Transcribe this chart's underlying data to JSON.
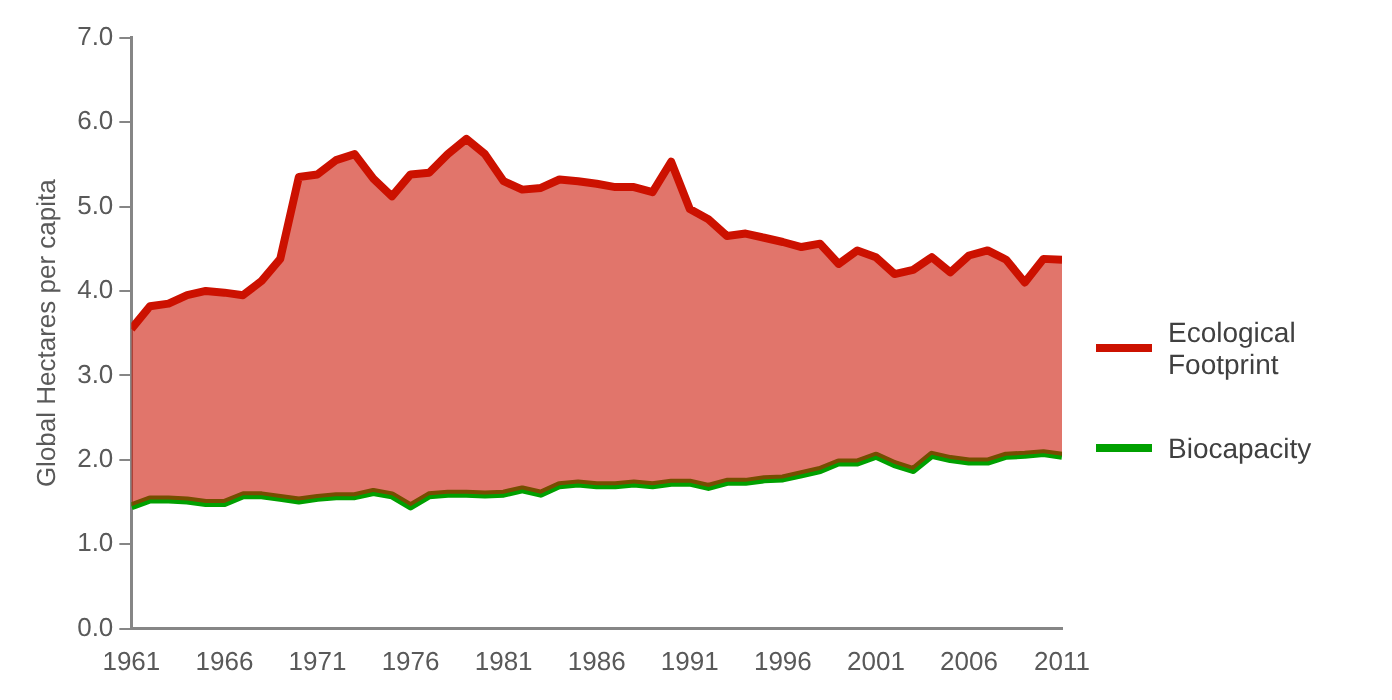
{
  "chart_data": {
    "type": "area",
    "ylabel": "Global Hectares per capita",
    "x": [
      1961,
      1962,
      1963,
      1964,
      1965,
      1966,
      1967,
      1968,
      1969,
      1970,
      1971,
      1972,
      1973,
      1974,
      1975,
      1976,
      1977,
      1978,
      1979,
      1980,
      1981,
      1982,
      1983,
      1984,
      1985,
      1986,
      1987,
      1988,
      1989,
      1990,
      1991,
      1992,
      1993,
      1994,
      1995,
      1996,
      1997,
      1998,
      1999,
      2000,
      2001,
      2002,
      2003,
      2004,
      2005,
      2006,
      2007,
      2008,
      2009,
      2010,
      2011
    ],
    "series": [
      {
        "name": "Ecological Footprint",
        "color": "#cc1100",
        "values": [
          3.55,
          3.82,
          3.85,
          3.95,
          4.0,
          3.98,
          3.95,
          4.12,
          4.38,
          5.35,
          5.38,
          5.55,
          5.62,
          5.33,
          5.12,
          5.38,
          5.4,
          5.62,
          5.8,
          5.62,
          5.3,
          5.2,
          5.22,
          5.32,
          5.3,
          5.27,
          5.23,
          5.23,
          5.17,
          5.53,
          4.97,
          4.85,
          4.65,
          4.68,
          4.63,
          4.58,
          4.52,
          4.56,
          4.32,
          4.48,
          4.4,
          4.2,
          4.25,
          4.4,
          4.22,
          4.42,
          4.48,
          4.37,
          4.1,
          4.38,
          4.37
        ]
      },
      {
        "name": "Biocapacity",
        "type": "line",
        "color": "#00a000",
        "values": [
          1.45,
          1.53,
          1.53,
          1.52,
          1.49,
          1.49,
          1.58,
          1.58,
          1.55,
          1.52,
          1.55,
          1.57,
          1.57,
          1.62,
          1.58,
          1.45,
          1.58,
          1.6,
          1.6,
          1.59,
          1.6,
          1.65,
          1.6,
          1.7,
          1.72,
          1.7,
          1.7,
          1.72,
          1.7,
          1.73,
          1.73,
          1.68,
          1.74,
          1.74,
          1.77,
          1.78,
          1.83,
          1.88,
          1.97,
          1.97,
          2.05,
          1.95,
          1.88,
          2.06,
          2.01,
          1.98,
          1.98,
          2.05,
          2.06,
          2.08,
          2.05
        ]
      }
    ],
    "xlim": [
      1961,
      2011
    ],
    "xticks": [
      1961,
      1966,
      1971,
      1976,
      1981,
      1986,
      1991,
      1996,
      2001,
      2006,
      2011
    ],
    "ylim": [
      0,
      7
    ],
    "yticks": [
      {
        "value": 0,
        "label": "0.0"
      },
      {
        "value": 1,
        "label": "1.0"
      },
      {
        "value": 2,
        "label": "2.0"
      },
      {
        "value": 3,
        "label": "3.0"
      },
      {
        "value": 4,
        "label": "4.0"
      },
      {
        "value": 5,
        "label": "5.0"
      },
      {
        "value": 6,
        "label": "6.0"
      },
      {
        "value": 7,
        "label": "7.0"
      }
    ],
    "grid": false,
    "legend": "right",
    "marker": "none",
    "line_style": "solid"
  }
}
